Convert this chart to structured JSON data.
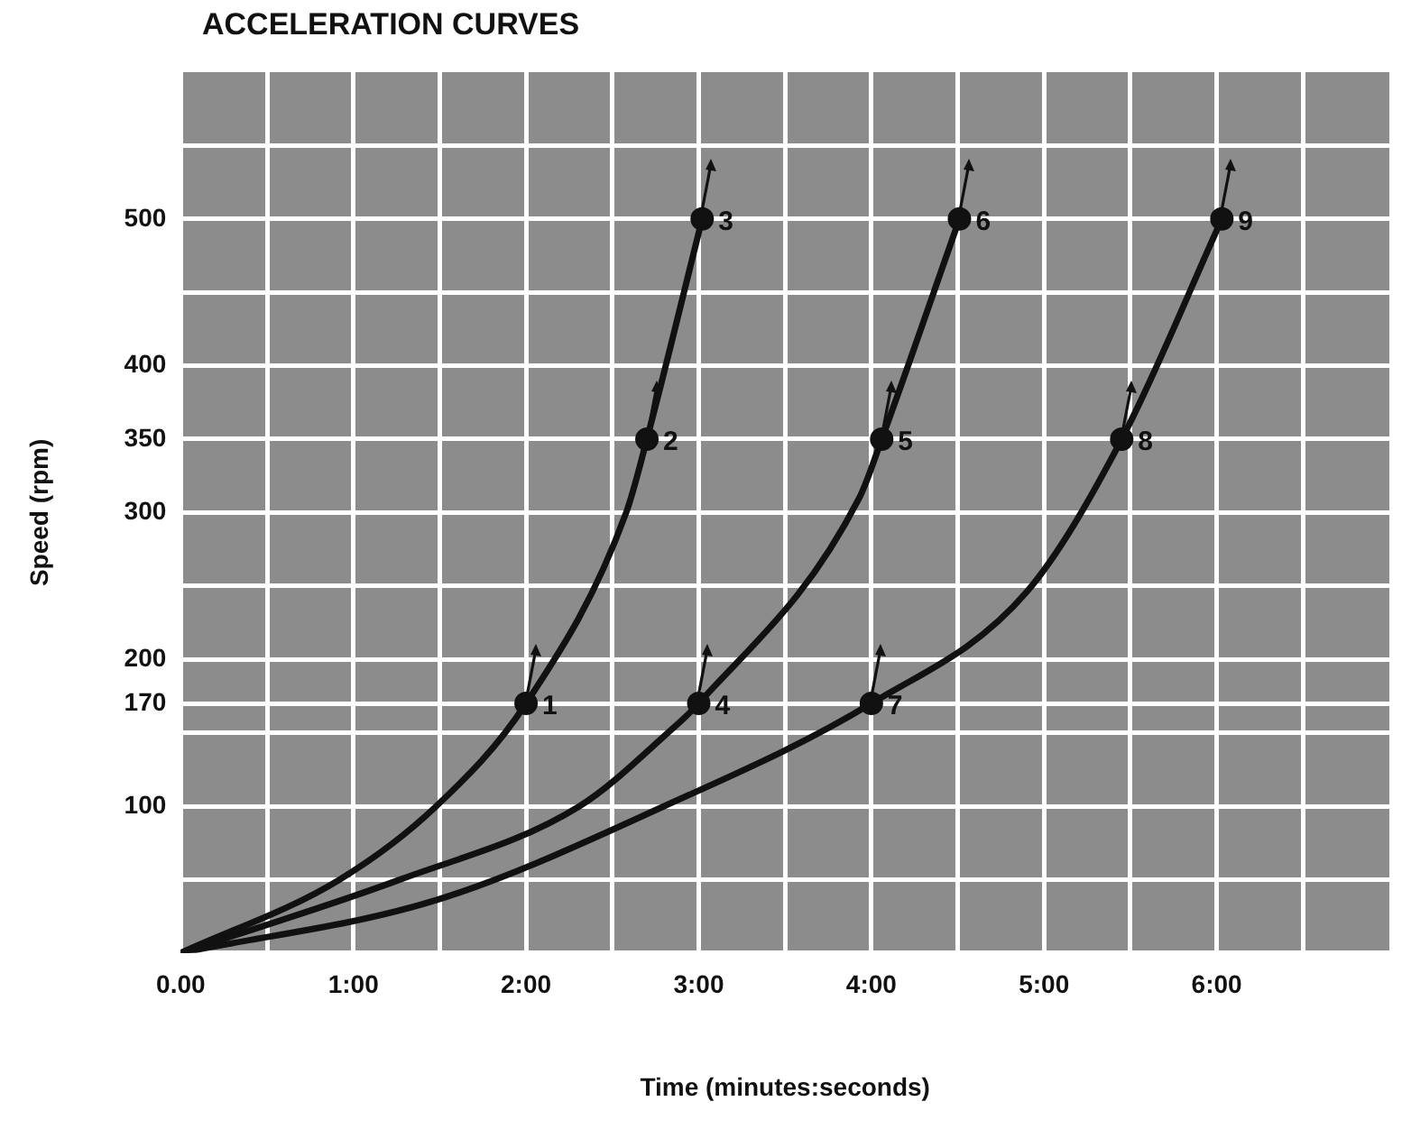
{
  "chart_data": {
    "type": "line",
    "title": "ACCELERATION CURVES",
    "xlabel": "Time (minutes:seconds)",
    "ylabel": "Speed (rpm)",
    "xlim": [
      0,
      7
    ],
    "ylim": [
      0,
      600
    ],
    "xticks": [
      {
        "value": 0,
        "label": "0.00"
      },
      {
        "value": 0.5,
        "label": null
      },
      {
        "value": 1,
        "label": "1:00"
      },
      {
        "value": 1.5,
        "label": null
      },
      {
        "value": 2,
        "label": "2:00"
      },
      {
        "value": 2.5,
        "label": null
      },
      {
        "value": 3,
        "label": "3:00"
      },
      {
        "value": 3.5,
        "label": null
      },
      {
        "value": 4,
        "label": "4:00"
      },
      {
        "value": 4.5,
        "label": null
      },
      {
        "value": 5,
        "label": "5:00"
      },
      {
        "value": 5.5,
        "label": null
      },
      {
        "value": 6,
        "label": "6:00"
      },
      {
        "value": 6.5,
        "label": null
      }
    ],
    "yticks": [
      {
        "value": 0,
        "label": null
      },
      {
        "value": 50,
        "label": null
      },
      100,
      {
        "value": 150,
        "label": null
      },
      170,
      200,
      {
        "value": 250,
        "label": null
      },
      300,
      350,
      400,
      {
        "value": 450,
        "label": null
      },
      500,
      {
        "value": 550,
        "label": null
      }
    ],
    "grid": true,
    "marker": "none",
    "line_style": "solid",
    "series": [
      {
        "color": "#111111",
        "x": [
          0,
          0.92,
          1.48,
          2.0,
          2.58,
          2.7,
          3.02
        ],
        "values": [
          0,
          50,
          100,
          170,
          300,
          350,
          500
        ]
      },
      {
        "color": "#111111",
        "x": [
          0,
          1.27,
          2.31,
          2.84,
          3.0,
          3.93,
          4.06,
          4.51
        ],
        "values": [
          0,
          50,
          100,
          152,
          170,
          310,
          350,
          500
        ]
      },
      {
        "color": "#111111",
        "x": [
          0,
          1.48,
          2.8,
          4.0,
          4.9,
          5.45,
          6.03
        ],
        "values": [
          0,
          36,
          100,
          170,
          246,
          350,
          500
        ]
      },
      {
        "type": "scatter",
        "marker": "circle",
        "color": "#111111",
        "x": [
          2.0,
          2.7,
          3.02,
          3.0,
          4.06,
          4.51,
          4.0,
          5.45,
          6.03
        ],
        "values": [
          170,
          350,
          500,
          170,
          350,
          500,
          170,
          350,
          500
        ]
      }
    ],
    "annotations": [
      {
        "text": "1",
        "x": 2.0,
        "y": 170
      },
      {
        "text": "2",
        "x": 2.7,
        "y": 350
      },
      {
        "text": "3",
        "x": 3.02,
        "y": 500
      },
      {
        "text": "4",
        "x": 3.0,
        "y": 170
      },
      {
        "text": "5",
        "x": 4.06,
        "y": 350
      },
      {
        "text": "6",
        "x": 4.51,
        "y": 500
      },
      {
        "text": "7",
        "x": 4.0,
        "y": 170
      },
      {
        "text": "8",
        "x": 5.45,
        "y": 350
      },
      {
        "text": "9",
        "x": 6.03,
        "y": 500
      }
    ]
  }
}
